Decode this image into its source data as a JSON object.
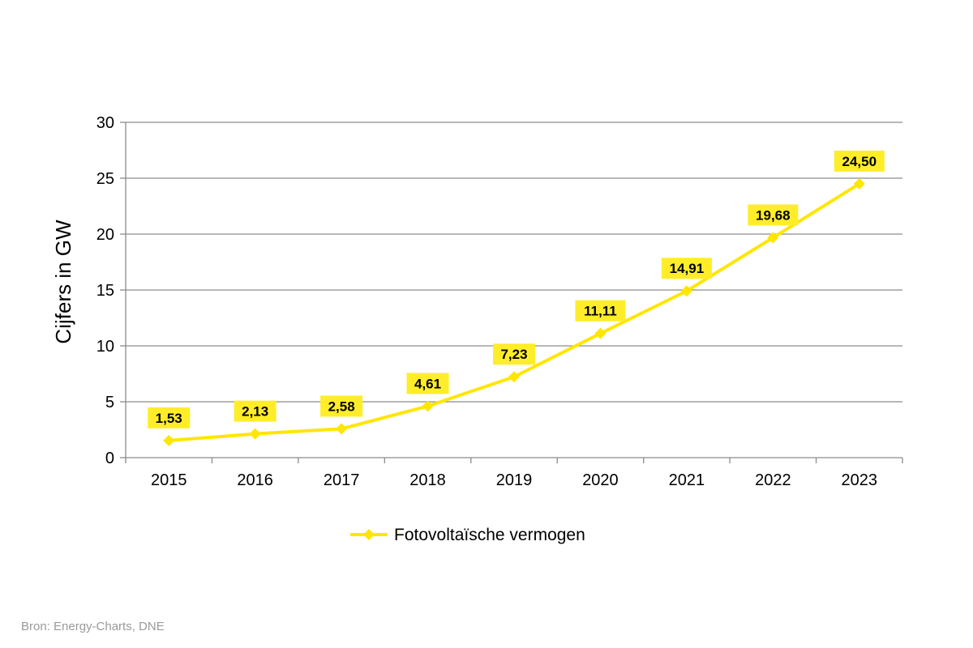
{
  "chart_data": {
    "type": "line",
    "title": "",
    "xlabel": "",
    "ylabel": "Cijfers in GW",
    "categories": [
      "2015",
      "2016",
      "2017",
      "2018",
      "2019",
      "2020",
      "2021",
      "2022",
      "2023"
    ],
    "series": [
      {
        "name": "Fotovoltaïsche vermogen",
        "values": [
          1.53,
          2.13,
          2.58,
          4.61,
          7.23,
          11.11,
          14.91,
          19.68,
          24.5
        ],
        "labels": [
          "1,53",
          "2,13",
          "2,58",
          "4,61",
          "7,23",
          "11,11",
          "14,91",
          "19,68",
          "24,50"
        ],
        "color": "#ffe600",
        "label_box_color": "#ffed29",
        "marker": "diamond-icon"
      }
    ],
    "ylim": [
      0,
      30
    ],
    "yticks": [
      0,
      5,
      10,
      15,
      20,
      25,
      30
    ],
    "ytick_labels": [
      "0",
      "5",
      "10",
      "15",
      "20",
      "25",
      "30"
    ],
    "grid": true,
    "grid_color": "#8c8c8c",
    "legend_position": "bottom"
  },
  "footer": {
    "source": "Bron: Energy-Charts, DNE"
  }
}
